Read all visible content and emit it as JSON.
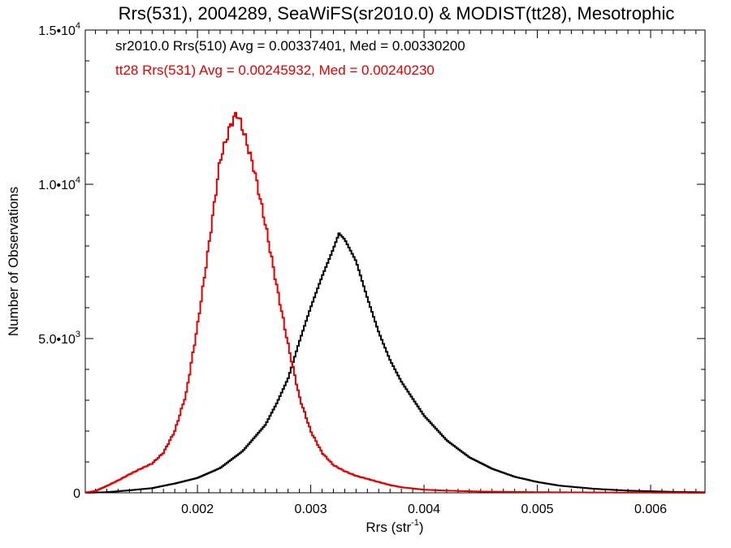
{
  "chart_data": {
    "type": "line",
    "title": "Rrs(531), 2004289, SeaWiFS(sr2010.0) & MODIST(tt28), Mesotrophic",
    "xlabel_main": "Rrs (str",
    "xlabel_sup": "-1",
    "xlabel_tail": ")",
    "ylabel": "Number of Observations",
    "xlim": [
      0.00101,
      0.00648
    ],
    "ylim": [
      0,
      15000
    ],
    "x_ticks": [
      {
        "value": 0.002,
        "label": "0.002"
      },
      {
        "value": 0.003,
        "label": "0.003"
      },
      {
        "value": 0.004,
        "label": "0.004"
      },
      {
        "value": 0.005,
        "label": "0.005"
      },
      {
        "value": 0.006,
        "label": "0.006"
      }
    ],
    "y_ticks": [
      {
        "value": 0,
        "mant": "0",
        "exp": ""
      },
      {
        "value": 5000,
        "mant": "5.0•10",
        "exp": "3"
      },
      {
        "value": 10000,
        "mant": "1.0•10",
        "exp": "4"
      },
      {
        "value": 15000,
        "mant": "1.5•10",
        "exp": "4"
      }
    ],
    "grid": false,
    "legend_position": "top-left",
    "series": [
      {
        "name": "sr2010.0 Rrs(510) Avg = 0.00337401, Med = 0.00330200",
        "color": "#000000",
        "x": [
          0.001,
          0.0012,
          0.0014,
          0.0016,
          0.0018,
          0.002,
          0.0022,
          0.0024,
          0.0026,
          0.0027,
          0.0028,
          0.0029,
          0.003,
          0.0031,
          0.0032,
          0.00325,
          0.0033,
          0.0034,
          0.0035,
          0.0036,
          0.0037,
          0.0038,
          0.004,
          0.0042,
          0.0044,
          0.0046,
          0.0048,
          0.005,
          0.0052,
          0.0055,
          0.0058,
          0.0062,
          0.0065
        ],
        "y": [
          0,
          20,
          80,
          150,
          300,
          480,
          800,
          1350,
          2200,
          2900,
          3700,
          4900,
          6000,
          7000,
          7900,
          8400,
          8200,
          7500,
          6300,
          5200,
          4300,
          3600,
          2500,
          1700,
          1150,
          780,
          520,
          350,
          230,
          130,
          70,
          30,
          15
        ]
      },
      {
        "name": "tt28 Rrs(531) Avg = 0.00245932, Med = 0.00240230",
        "color": "#e00000",
        "x": [
          0.001,
          0.0011,
          0.0012,
          0.0013,
          0.0014,
          0.0015,
          0.0016,
          0.0017,
          0.0018,
          0.0019,
          0.002,
          0.0021,
          0.0022,
          0.0023,
          0.00235,
          0.0024,
          0.0025,
          0.0026,
          0.0027,
          0.0028,
          0.0029,
          0.003,
          0.0031,
          0.0032,
          0.0033,
          0.0034,
          0.0035,
          0.0036,
          0.0037,
          0.0038,
          0.004,
          0.0042,
          0.0045,
          0.005,
          0.0055,
          0.006,
          0.0065
        ],
        "y": [
          0,
          60,
          220,
          400,
          600,
          780,
          950,
          1300,
          2000,
          3200,
          5400,
          8000,
          10800,
          12000,
          12300,
          11800,
          10500,
          8700,
          6700,
          4800,
          3100,
          2000,
          1300,
          900,
          700,
          550,
          450,
          350,
          250,
          180,
          100,
          70,
          40,
          20,
          10,
          5,
          0
        ]
      }
    ]
  }
}
